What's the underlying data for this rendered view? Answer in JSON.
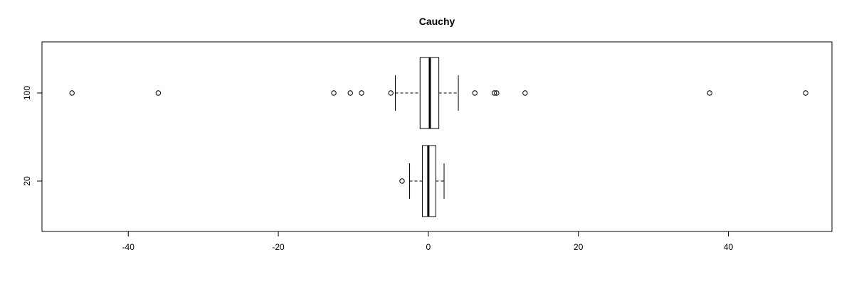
{
  "chart_data": {
    "type": "boxplot",
    "title": "Cauchy",
    "orientation": "horizontal",
    "xlabel": "",
    "ylabel": "",
    "xlim": [
      -51.5,
      53.8
    ],
    "x_ticks": [
      -40,
      -20,
      0,
      20,
      40
    ],
    "x_tick_labels": [
      "-40",
      "-20",
      "0",
      "20",
      "40"
    ],
    "categories": [
      "20",
      "100"
    ],
    "series": [
      {
        "category": "20",
        "whisker_low": -2.5,
        "q1": -0.8,
        "median": 0.0,
        "q3": 1.0,
        "whisker_high": 2.1,
        "outliers": [
          -3.5
        ]
      },
      {
        "category": "100",
        "whisker_low": -4.4,
        "q1": -1.1,
        "median": 0.2,
        "q3": 1.4,
        "whisker_high": 4.0,
        "outliers": [
          -47.5,
          -36.0,
          -12.6,
          -10.4,
          -8.9,
          -5.0,
          6.2,
          8.8,
          9.1,
          12.9,
          37.5,
          50.3
        ]
      }
    ],
    "grid": false,
    "legend": "none"
  }
}
